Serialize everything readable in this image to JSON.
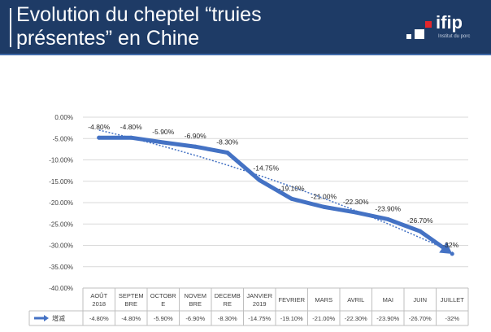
{
  "slide": {
    "title_line1": "Evolution du cheptel “truies",
    "title_line2": "présentes” en Chine"
  },
  "logo": {
    "text": "ifip",
    "subtitle": "Institut du porc",
    "colors": {
      "red": "#e3262b",
      "white": "#ffffff"
    }
  },
  "chart_data": {
    "type": "line",
    "categories": [
      [
        "AOÛT",
        "2018"
      ],
      [
        "SEPTEM",
        "BRE"
      ],
      [
        "OCTOBR",
        "E"
      ],
      [
        "NOVEM",
        "BRE"
      ],
      [
        "DECEMB",
        "RE"
      ],
      [
        "JANVIER",
        "2019"
      ],
      [
        "FEVRIER"
      ],
      [
        "MARS"
      ],
      [
        "AVRIL"
      ],
      [
        "MAI"
      ],
      [
        "JUIN"
      ],
      [
        "JUILLET"
      ]
    ],
    "series": [
      {
        "name": "增减",
        "values": [
          -4.8,
          -4.8,
          -5.9,
          -6.9,
          -8.3,
          -14.75,
          -19.1,
          -21.0,
          -22.3,
          -23.9,
          -26.7,
          -32.0
        ],
        "labels": [
          "-4.80%",
          "-4.80%",
          "-5.90%",
          "-6.90%",
          "-8.30%",
          "-14.75%",
          "-19.10%",
          "-21.00%",
          "-22.30%",
          "-23.90%",
          "-26.70%",
          "-32%"
        ],
        "color": "#4472c4"
      }
    ],
    "trendline": {
      "style": "dotted",
      "color": "#4472c4"
    },
    "y_ticks": [
      "0.00%",
      "-5.00%",
      "-10.00%",
      "-15.00%",
      "-20.00%",
      "-25.00%",
      "-30.00%",
      "-35.00%",
      "-40.00%"
    ],
    "ylim": [
      -40,
      0
    ],
    "grid": true,
    "data_table": true
  }
}
